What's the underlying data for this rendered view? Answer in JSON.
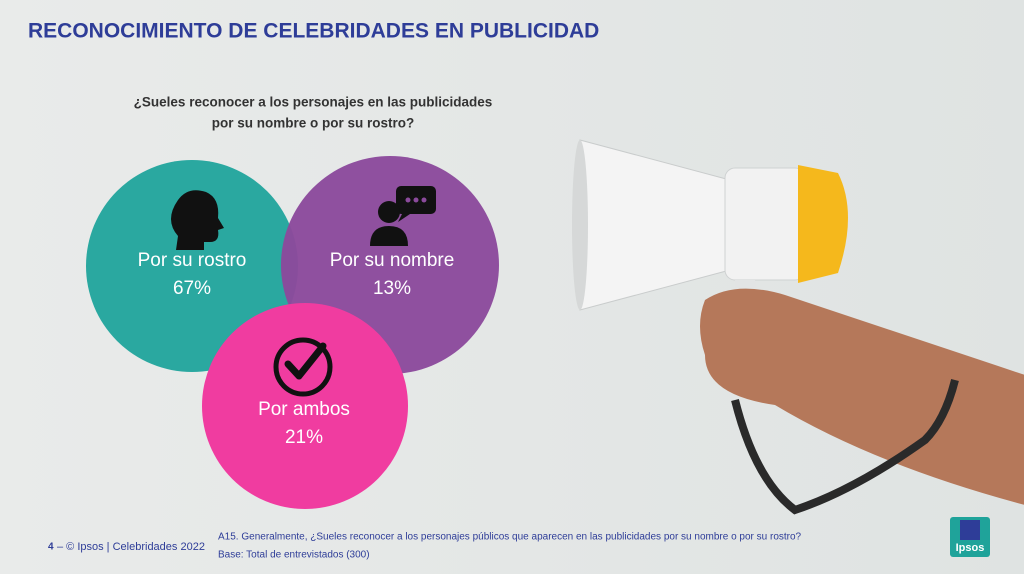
{
  "header": {
    "title": "RECONOCIMIENTO DE CELEBRIDADES EN PUBLICIDAD"
  },
  "question": [
    "¿Sueles reconocer a los personajes en las publicidades",
    "por su nombre o por su rostro?"
  ],
  "circles": [
    {
      "label": "Por su rostro",
      "value": "67%"
    },
    {
      "label": "Por su nombre",
      "value": "13%"
    },
    {
      "label": "Por ambos",
      "value": "21%"
    }
  ],
  "footer": {
    "page": "4",
    "source": "– © Ipsos | Celebridades 2022",
    "notes": [
      "A15. Generalmente, ¿Sueles reconocer a los personajes públicos que aparecen en las publicidades por su nombre o por su rostro?",
      "Base: Total de entrevistados (300)"
    ],
    "logo": "Ipsos"
  }
}
